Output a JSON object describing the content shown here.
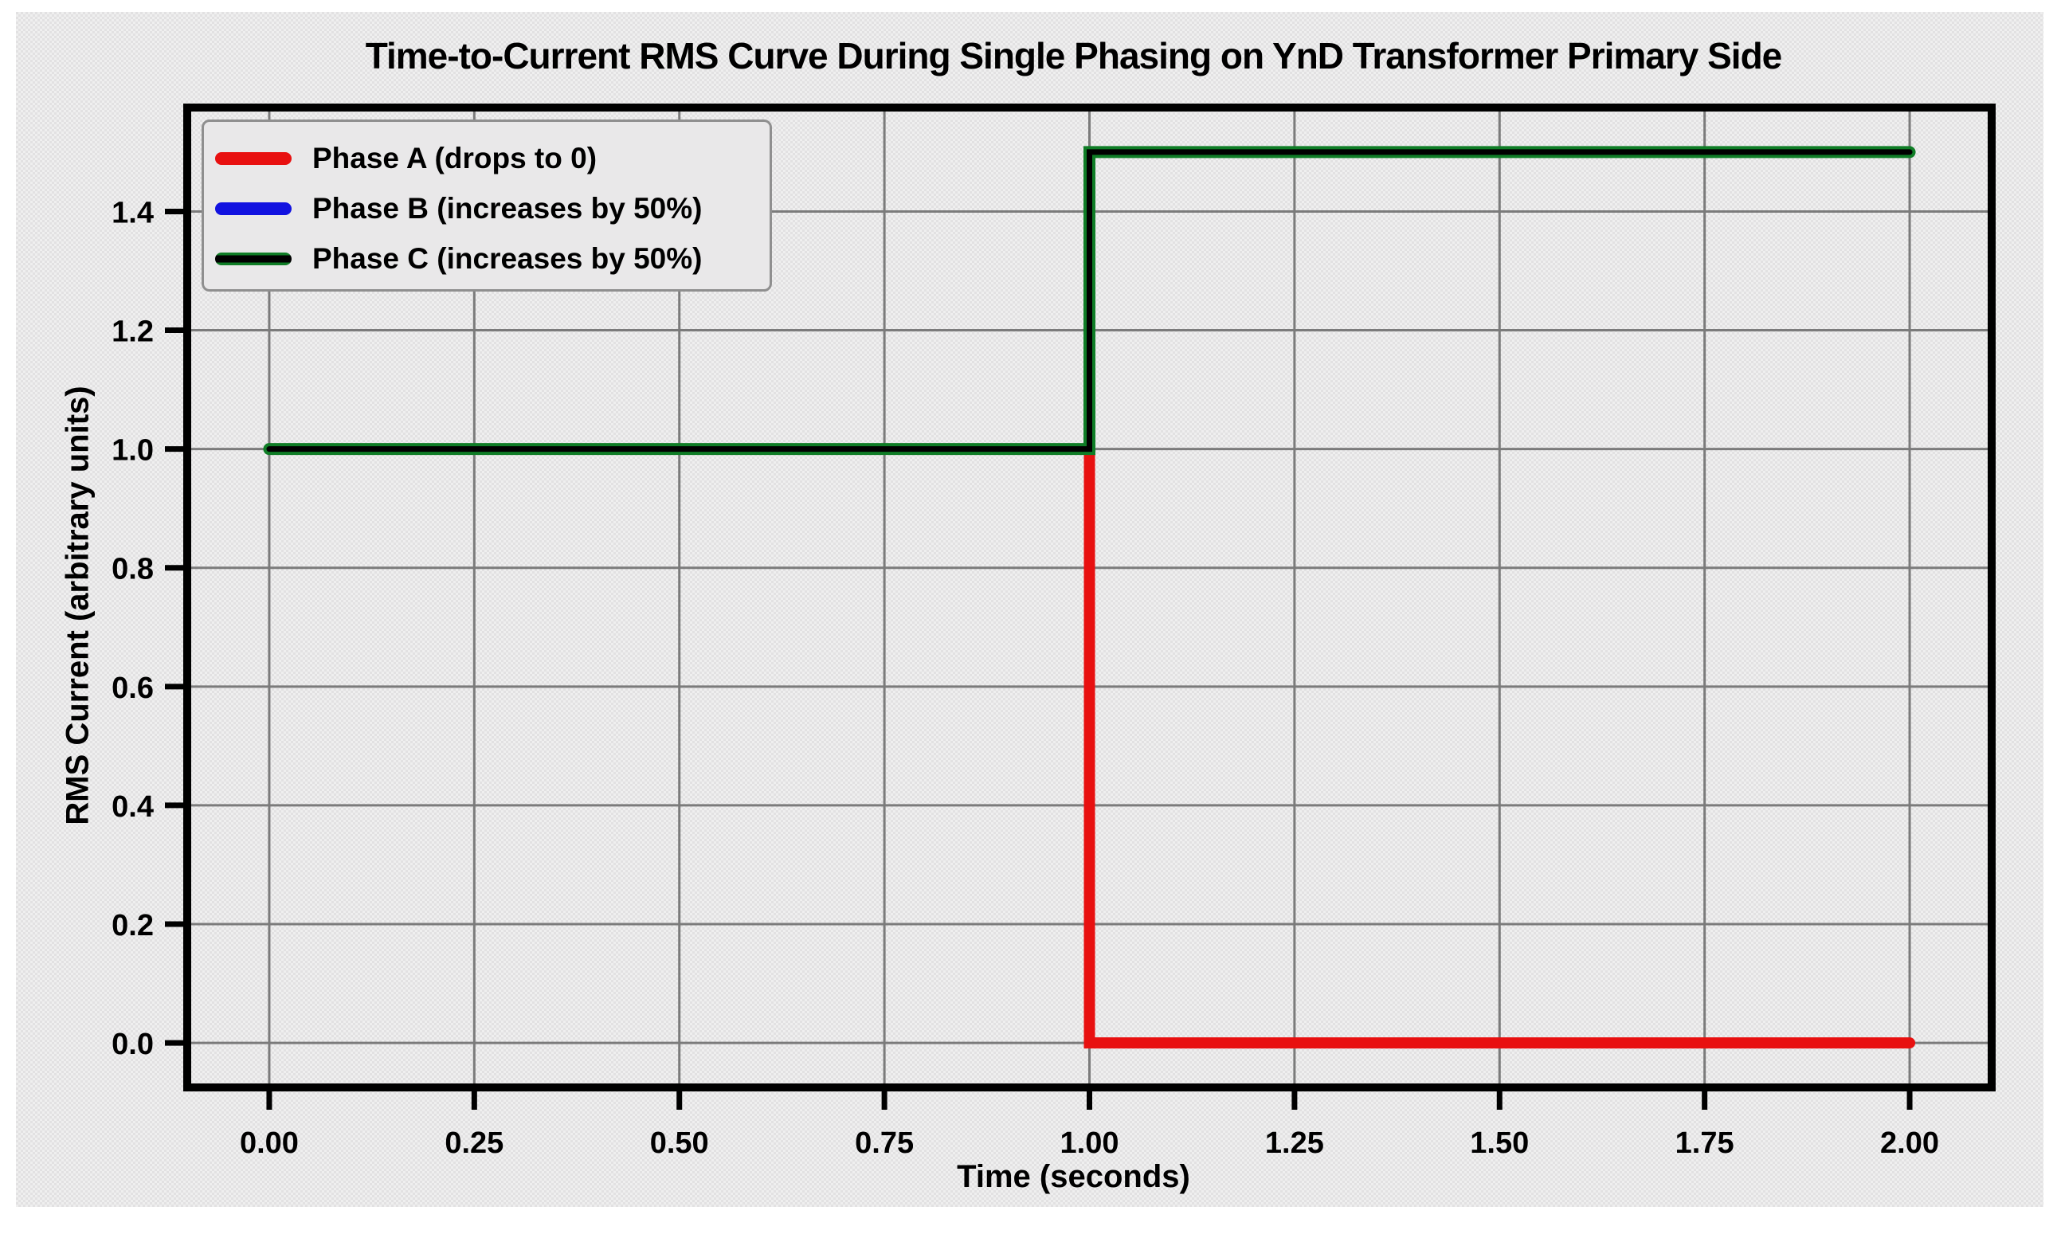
{
  "figure": {
    "background_color": "#e7e6e7",
    "grid_color": "#7b7b7b",
    "frame_color": "#000000",
    "text_color": "#000000"
  },
  "chart_data": {
    "type": "line",
    "title": "Time-to-Current RMS Curve During Single Phasing on YnD Transformer Primary Side",
    "xlabel": "Time (seconds)",
    "ylabel": "RMS Current (arbitrary units)",
    "xlim": [
      -0.1,
      2.1
    ],
    "ylim": [
      -0.075,
      1.575
    ],
    "grid": true,
    "legend_position": "upper-left",
    "xticks": {
      "values": [
        0,
        0.25,
        0.5,
        0.75,
        1.0,
        1.25,
        1.5,
        1.75,
        2.0
      ],
      "labels": [
        "0.00",
        "0.25",
        "0.50",
        "0.75",
        "1.00",
        "1.25",
        "1.50",
        "1.75",
        "2.00"
      ]
    },
    "yticks": {
      "values": [
        0,
        0.2,
        0.4,
        0.6,
        0.8,
        1.0,
        1.2,
        1.4
      ],
      "labels": [
        "0.0",
        "0.2",
        "0.4",
        "0.6",
        "0.8",
        "1.0",
        "1.2",
        "1.4"
      ]
    },
    "series": [
      {
        "name": "Phase A (drops to 0)",
        "color": "#e81010",
        "core_color": null,
        "x": [
          0,
          1,
          1,
          2
        ],
        "y": [
          1,
          1,
          0,
          0
        ]
      },
      {
        "name": "Phase B (increases by 50%)",
        "color": "#1212e0",
        "core_color": null,
        "x": [
          0,
          1,
          1,
          2
        ],
        "y": [
          1,
          1,
          1.5,
          1.5
        ]
      },
      {
        "name": "Phase C (increases by 50%)",
        "color": "#0f7d26",
        "core_color": "#000000",
        "x": [
          0,
          1,
          1,
          2
        ],
        "y": [
          1,
          1,
          1.5,
          1.5
        ]
      }
    ],
    "legend": {
      "entries": [
        {
          "label": "Phase A (drops to 0)",
          "color": "#e81010",
          "core_color": null
        },
        {
          "label": "Phase B (increases by 50%)",
          "color": "#1212e0",
          "core_color": null
        },
        {
          "label": "Phase C (increases by 50%)",
          "color": "#0f7d26",
          "core_color": "#000000"
        }
      ]
    }
  }
}
